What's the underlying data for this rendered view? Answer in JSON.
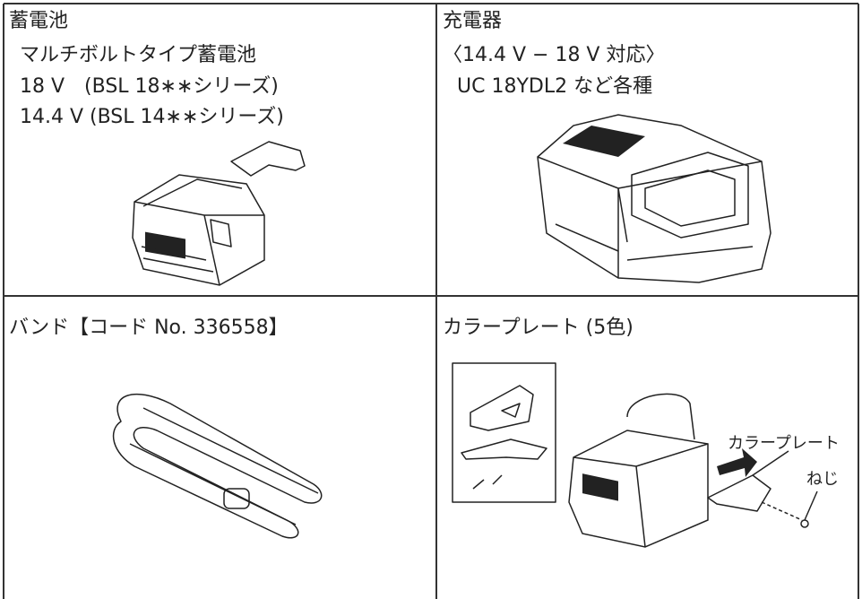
{
  "cells": [
    {
      "title": "蓄電池",
      "lines": [
        "マルチボルトタイプ蓄電池",
        "18 V　(BSL 18∗∗シリーズ)",
        "14.4 V (BSL 14∗∗シリーズ)"
      ]
    },
    {
      "title": "充電器",
      "lines": [
        "〈14.4 V − 18 V 対応〉",
        "UC 18YDL2 など各種"
      ]
    },
    {
      "title": "バンド【コード No. 336558】",
      "lines": []
    },
    {
      "title": "カラープレート (5色)",
      "lines": [],
      "callouts": [
        "カラープレート",
        "ねじ"
      ]
    }
  ]
}
